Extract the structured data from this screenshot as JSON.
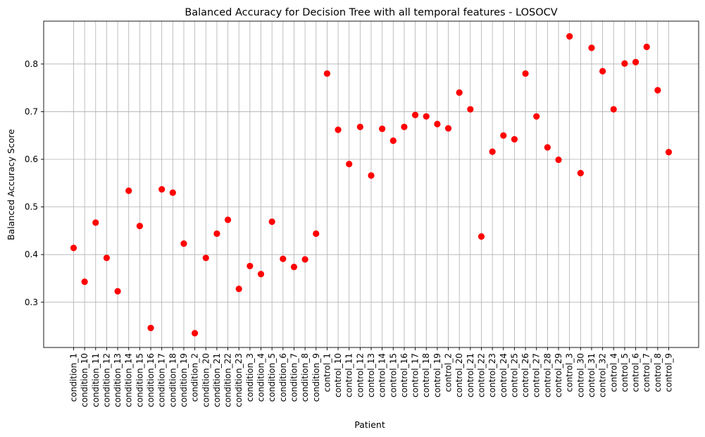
{
  "chart_data": {
    "type": "scatter",
    "title": "Balanced Accuracy for Decision Tree with all temporal features - LOSOCV",
    "xlabel": "Patient",
    "ylabel": "Balanced Accuracy Score",
    "ylim": [
      0.205,
      0.89
    ],
    "yticks": [
      "0.3",
      "0.4",
      "0.5",
      "0.6",
      "0.7",
      "0.8"
    ],
    "grid": true,
    "marker_color": "#ff0000",
    "categories": [
      "condition_1",
      "condition_10",
      "condition_11",
      "condition_12",
      "condition_13",
      "condition_14",
      "condition_15",
      "condition_16",
      "condition_17",
      "condition_18",
      "condition_19",
      "condition_2",
      "condition_20",
      "condition_21",
      "condition_22",
      "condition_23",
      "condition_3",
      "condition_4",
      "condition_5",
      "condition_6",
      "condition_7",
      "condition_8",
      "condition_9",
      "control_1",
      "control_10",
      "control_11",
      "control_12",
      "control_13",
      "control_14",
      "control_15",
      "control_16",
      "control_17",
      "control_18",
      "control_19",
      "control_2",
      "control_20",
      "control_21",
      "control_22",
      "control_23",
      "control_24",
      "control_25",
      "control_26",
      "control_27",
      "control_28",
      "control_29",
      "control_3",
      "control_30",
      "control_31",
      "control_32",
      "control_4",
      "control_5",
      "control_6",
      "control_7",
      "control_8",
      "control_9"
    ],
    "values": [
      0.414,
      0.343,
      0.467,
      0.393,
      0.323,
      0.534,
      0.46,
      0.246,
      0.537,
      0.53,
      0.423,
      0.235,
      0.393,
      0.444,
      0.473,
      0.328,
      0.376,
      0.359,
      0.469,
      0.391,
      0.374,
      0.39,
      0.444,
      0.78,
      0.662,
      0.59,
      0.668,
      0.566,
      0.664,
      0.639,
      0.668,
      0.693,
      0.69,
      0.674,
      0.665,
      0.74,
      0.705,
      0.438,
      0.616,
      0.65,
      0.642,
      0.78,
      0.69,
      0.625,
      0.599,
      0.858,
      0.571,
      0.834,
      0.785,
      0.705,
      0.801,
      0.804,
      0.836,
      0.745,
      0.615
    ]
  }
}
